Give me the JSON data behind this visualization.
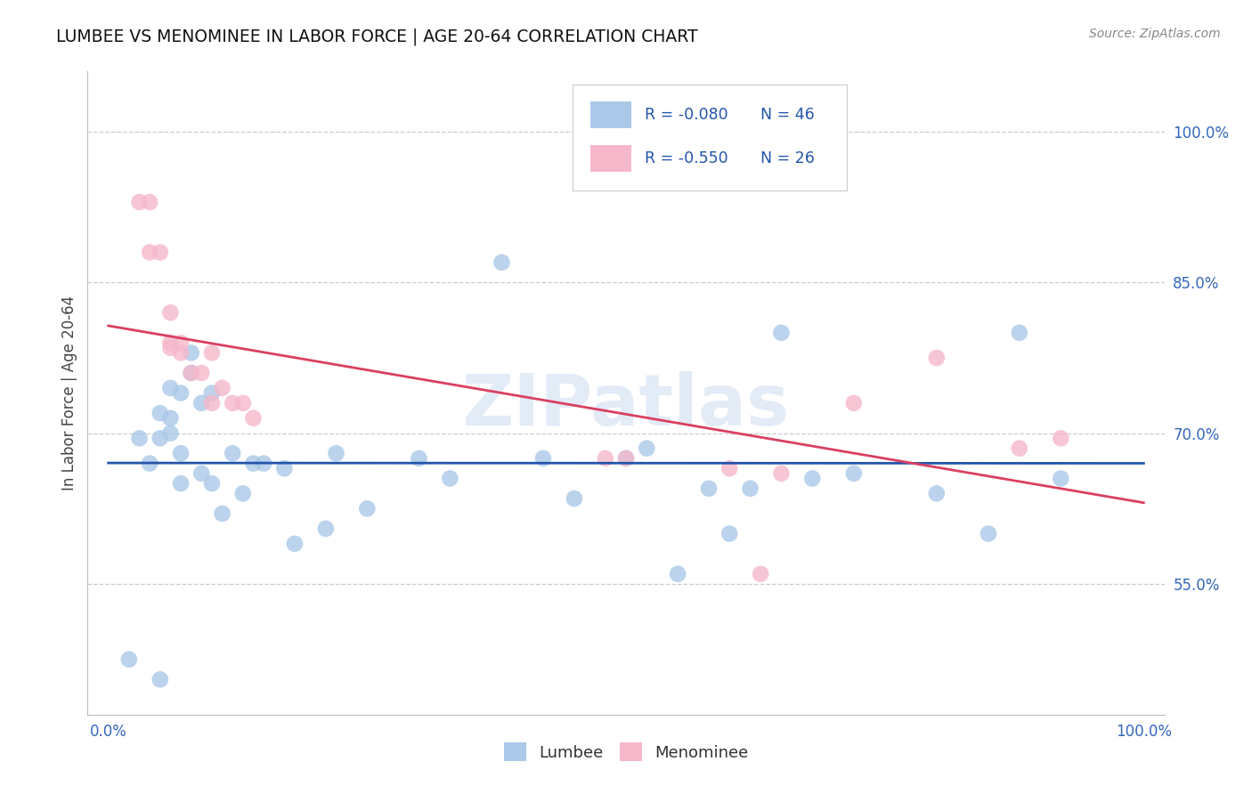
{
  "title": "LUMBEE VS MENOMINEE IN LABOR FORCE | AGE 20-64 CORRELATION CHART",
  "source": "Source: ZipAtlas.com",
  "ylabel": "In Labor Force | Age 20-64",
  "xlim": [
    -0.02,
    1.02
  ],
  "ylim": [
    0.42,
    1.06
  ],
  "ytick_labels_right": [
    "55.0%",
    "70.0%",
    "85.0%",
    "100.0%"
  ],
  "ytick_vals_right": [
    0.55,
    0.7,
    0.85,
    1.0
  ],
  "lumbee_R": -0.08,
  "lumbee_N": 46,
  "menominee_R": -0.55,
  "menominee_N": 26,
  "lumbee_color": "#aac8e8",
  "menominee_color": "#f5b8cb",
  "lumbee_line_color": "#2255aa",
  "menominee_line_color": "#d94060",
  "watermark": "ZIPatlas",
  "lumbee_x": [
    0.02,
    0.03,
    0.04,
    0.05,
    0.05,
    0.06,
    0.06,
    0.06,
    0.07,
    0.07,
    0.07,
    0.08,
    0.08,
    0.09,
    0.09,
    0.1,
    0.1,
    0.11,
    0.12,
    0.13,
    0.14,
    0.15,
    0.17,
    0.18,
    0.21,
    0.22,
    0.25,
    0.3,
    0.33,
    0.38,
    0.42,
    0.45,
    0.5,
    0.52,
    0.55,
    0.58,
    0.6,
    0.62,
    0.65,
    0.68,
    0.72,
    0.8,
    0.85,
    0.88,
    0.92,
    0.05
  ],
  "lumbee_y": [
    0.475,
    0.695,
    0.67,
    0.695,
    0.72,
    0.7,
    0.715,
    0.745,
    0.68,
    0.65,
    0.74,
    0.78,
    0.76,
    0.73,
    0.66,
    0.65,
    0.74,
    0.62,
    0.68,
    0.64,
    0.67,
    0.67,
    0.665,
    0.59,
    0.605,
    0.68,
    0.625,
    0.675,
    0.655,
    0.87,
    0.675,
    0.635,
    0.675,
    0.685,
    0.56,
    0.645,
    0.6,
    0.645,
    0.8,
    0.655,
    0.66,
    0.64,
    0.6,
    0.8,
    0.655,
    0.455
  ],
  "menominee_x": [
    0.03,
    0.04,
    0.04,
    0.05,
    0.06,
    0.06,
    0.06,
    0.07,
    0.07,
    0.08,
    0.09,
    0.1,
    0.1,
    0.11,
    0.12,
    0.13,
    0.14,
    0.48,
    0.5,
    0.6,
    0.63,
    0.65,
    0.72,
    0.8,
    0.88,
    0.92
  ],
  "menominee_y": [
    0.93,
    0.93,
    0.88,
    0.88,
    0.82,
    0.79,
    0.785,
    0.78,
    0.79,
    0.76,
    0.76,
    0.78,
    0.73,
    0.745,
    0.73,
    0.73,
    0.715,
    0.675,
    0.675,
    0.665,
    0.56,
    0.66,
    0.73,
    0.775,
    0.685,
    0.695
  ]
}
